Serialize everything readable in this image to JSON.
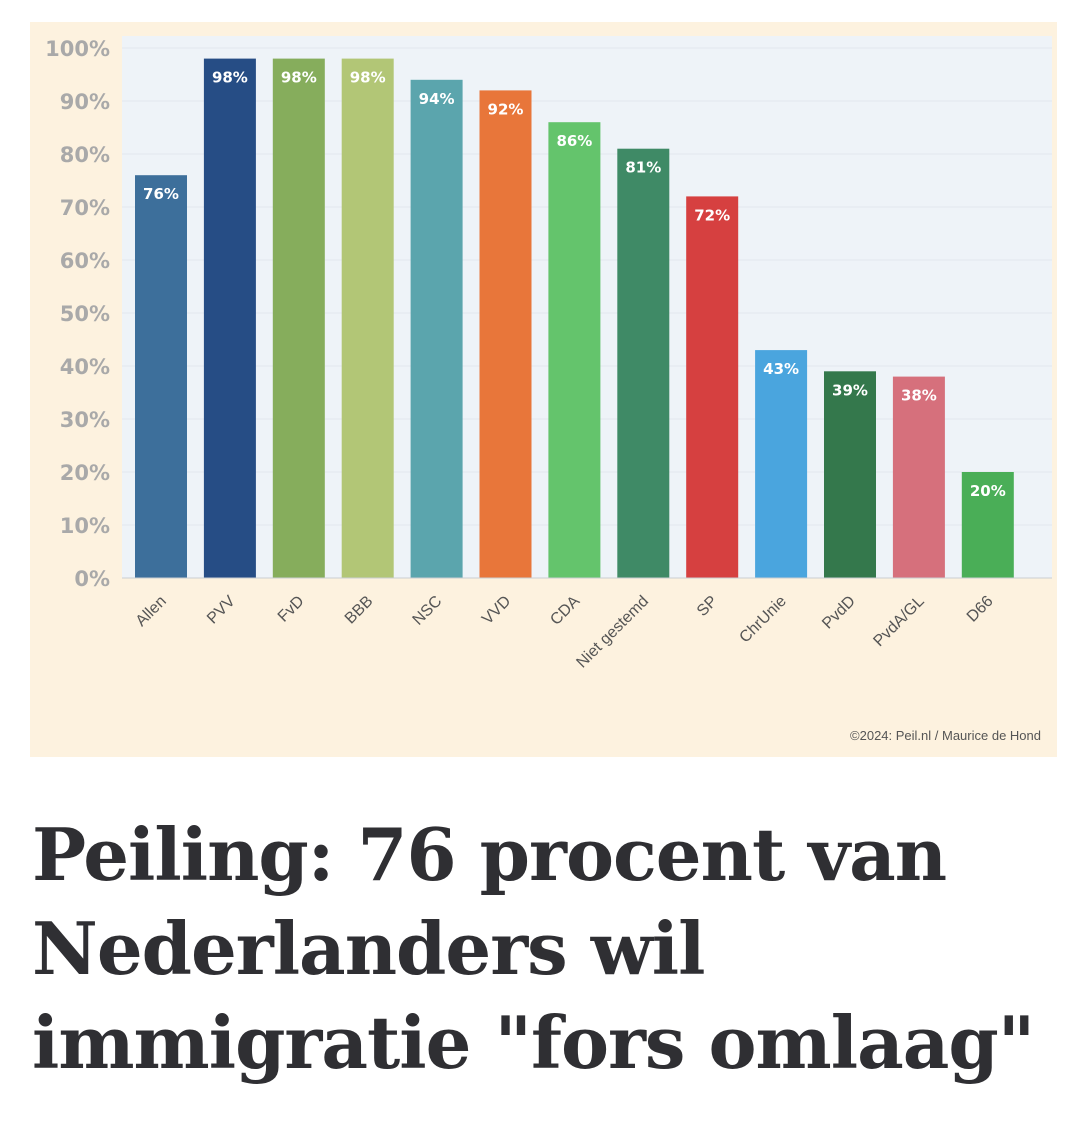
{
  "chart_data": {
    "type": "bar",
    "categories": [
      "Allen",
      "PVV",
      "FvD",
      "BBB",
      "NSC",
      "VVD",
      "CDA",
      "Niet gestemd",
      "SP",
      "ChrUnie",
      "PvdD",
      "PvdA/GL",
      "D66"
    ],
    "values": [
      76,
      98,
      98,
      98,
      94,
      92,
      86,
      81,
      72,
      43,
      39,
      38,
      20
    ],
    "value_labels": [
      "76%",
      "98%",
      "98%",
      "98%",
      "94%",
      "92%",
      "86%",
      "81%",
      "72%",
      "43%",
      "39%",
      "38%",
      "20%"
    ],
    "colors": [
      "#3d6f9b",
      "#264d85",
      "#86ad5c",
      "#b2c676",
      "#5ba5ad",
      "#e8763a",
      "#64c46c",
      "#3f8a66",
      "#d64040",
      "#4aa5de",
      "#34784c",
      "#d6707c",
      "#4aae57"
    ],
    "title": "",
    "xlabel": "",
    "ylabel": "",
    "ylim": [
      0,
      100
    ],
    "yticks": [
      "0%",
      "10%",
      "20%",
      "30%",
      "40%",
      "50%",
      "60%",
      "70%",
      "80%",
      "90%",
      "100%"
    ],
    "grid": true,
    "legend": "none"
  },
  "credit": "©2024: Peil.nl / Maurice de Hond",
  "headline": "Peiling: 76 procent van Nederlanders wil immigratie \"fors omlaag\""
}
